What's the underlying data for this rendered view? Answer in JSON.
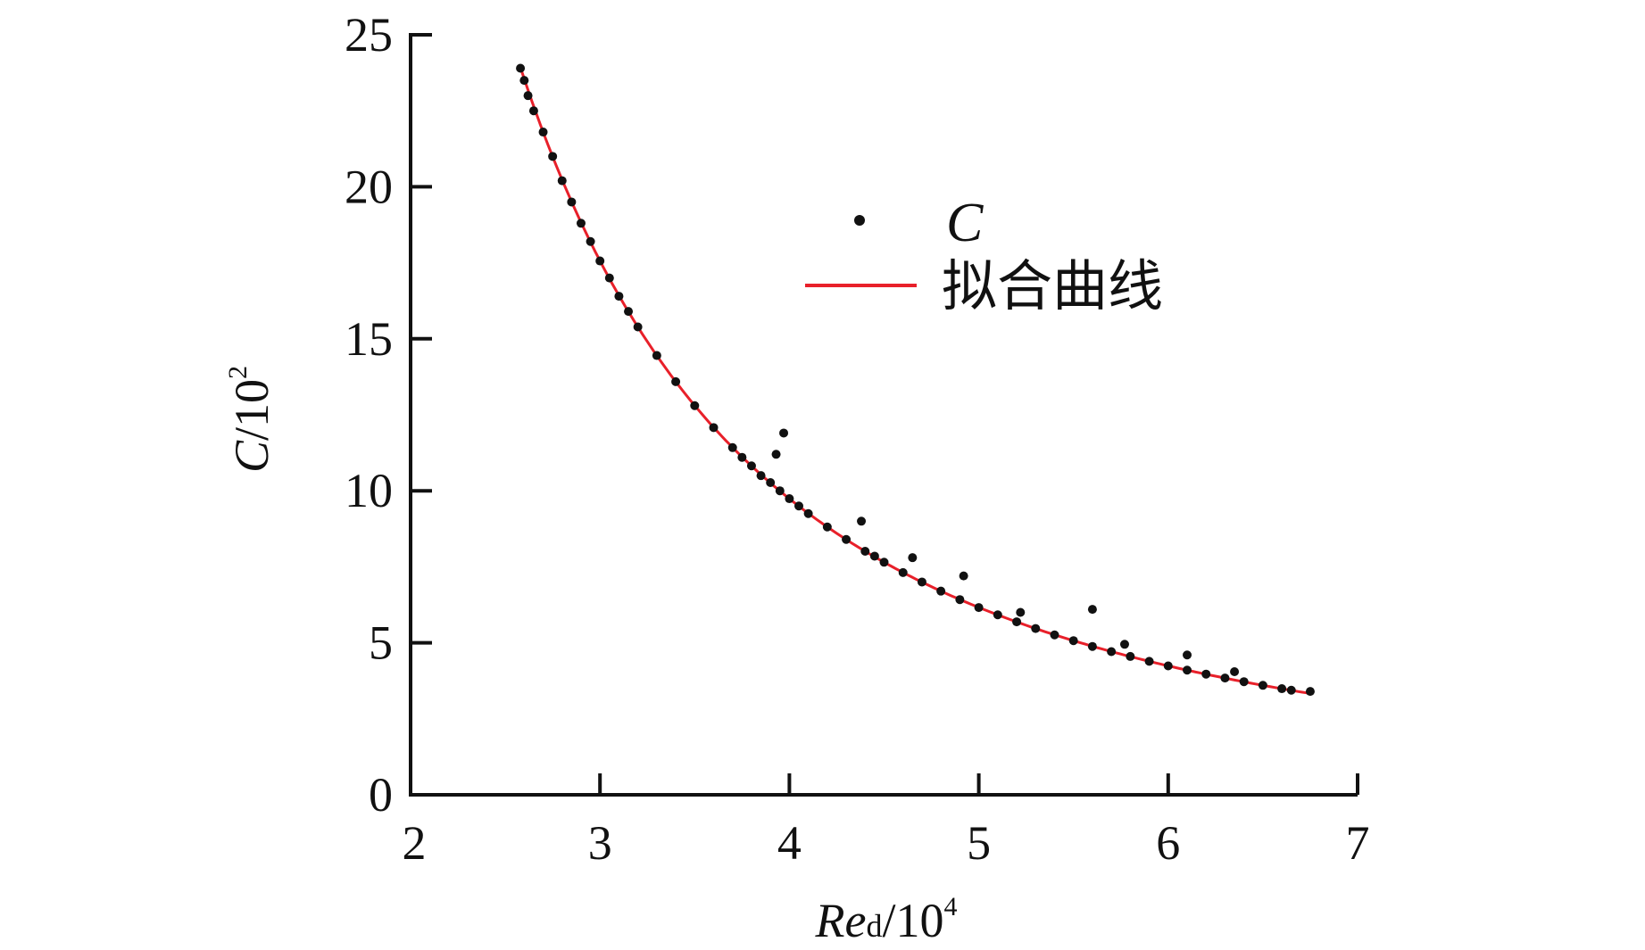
{
  "chart_data": {
    "type": "scatter",
    "title": "",
    "xlabel": {
      "main": "Re",
      "sub": "d",
      "unit": "/10",
      "exp": "4"
    },
    "ylabel": {
      "main": "C",
      "unit": "/10",
      "exp": "2"
    },
    "xlim": [
      2,
      7
    ],
    "ylim": [
      0,
      25
    ],
    "xticks": [
      "2",
      "3",
      "4",
      "5",
      "6",
      "7"
    ],
    "yticks": [
      "0",
      "5",
      "10",
      "15",
      "20",
      "25"
    ],
    "grid": false,
    "legend": {
      "placement": "top-center",
      "entries": [
        "C",
        "拟合曲线"
      ]
    },
    "colors": {
      "points": "#111111",
      "fit": "#e8202a",
      "axis": "#111111"
    },
    "fit": {
      "name": "拟合曲线",
      "formula": "C = a * Re^b",
      "a": 167,
      "b": -2.05,
      "x_range": [
        2.58,
        6.75
      ]
    },
    "series": [
      {
        "name": "C",
        "points": [
          [
            2.58,
            23.9
          ],
          [
            2.6,
            23.5
          ],
          [
            2.62,
            23.0
          ],
          [
            2.65,
            22.5
          ],
          [
            2.7,
            21.8
          ],
          [
            2.75,
            21.0
          ],
          [
            2.8,
            20.2
          ],
          [
            2.85,
            19.5
          ],
          [
            2.9,
            18.8
          ],
          [
            2.95,
            18.2
          ],
          [
            3.0,
            17.56
          ],
          [
            3.05,
            17.0
          ],
          [
            3.1,
            16.4
          ],
          [
            3.15,
            15.9
          ],
          [
            3.2,
            15.39
          ],
          [
            3.3,
            14.45
          ],
          [
            3.4,
            13.59
          ],
          [
            3.5,
            12.8
          ],
          [
            3.6,
            12.08
          ],
          [
            3.7,
            11.42
          ],
          [
            3.75,
            11.1
          ],
          [
            3.8,
            10.82
          ],
          [
            3.85,
            10.5
          ],
          [
            3.9,
            10.27
          ],
          [
            3.95,
            10.0
          ],
          [
            4.0,
            9.74
          ],
          [
            4.05,
            9.5
          ],
          [
            4.1,
            9.25
          ],
          [
            4.2,
            8.81
          ],
          [
            4.3,
            8.4
          ],
          [
            4.4,
            8.01
          ],
          [
            4.45,
            7.85
          ],
          [
            4.5,
            7.65
          ],
          [
            4.6,
            7.31
          ],
          [
            4.7,
            7.0
          ],
          [
            4.8,
            6.7
          ],
          [
            4.9,
            6.42
          ],
          [
            5.0,
            6.16
          ],
          [
            5.1,
            5.92
          ],
          [
            5.2,
            5.69
          ],
          [
            5.3,
            5.47
          ],
          [
            5.4,
            5.26
          ],
          [
            5.5,
            5.07
          ],
          [
            5.6,
            4.88
          ],
          [
            5.7,
            4.71
          ],
          [
            5.8,
            4.55
          ],
          [
            5.9,
            4.39
          ],
          [
            6.0,
            4.24
          ],
          [
            6.1,
            4.1
          ],
          [
            6.2,
            3.97
          ],
          [
            6.3,
            3.84
          ],
          [
            6.4,
            3.72
          ],
          [
            6.5,
            3.6
          ],
          [
            6.6,
            3.49
          ],
          [
            6.65,
            3.44
          ],
          [
            6.75,
            3.4
          ],
          [
            3.93,
            11.2
          ],
          [
            3.97,
            11.9
          ],
          [
            4.38,
            9.0
          ],
          [
            4.65,
            7.8
          ],
          [
            4.92,
            7.2
          ],
          [
            5.22,
            6.0
          ],
          [
            5.6,
            6.1
          ],
          [
            5.77,
            4.95
          ],
          [
            6.1,
            4.6
          ],
          [
            6.35,
            4.05
          ]
        ]
      }
    ]
  }
}
